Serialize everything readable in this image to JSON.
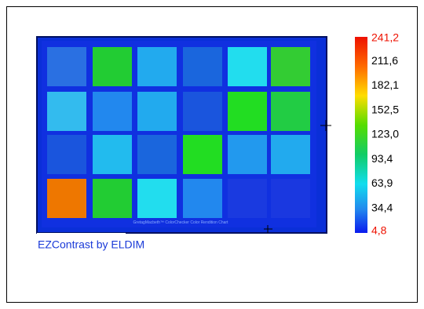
{
  "image": {
    "caption": "GretagMacbeth™ ColorChecker Color Rendition Chart"
  },
  "scale": {
    "labels": [
      "241,2",
      "211,6",
      "182,1",
      "152,5",
      "123,0",
      "93,4",
      "63,9",
      "34,4",
      "4,8"
    ]
  },
  "footer": "EZContrast by ELDIM"
}
